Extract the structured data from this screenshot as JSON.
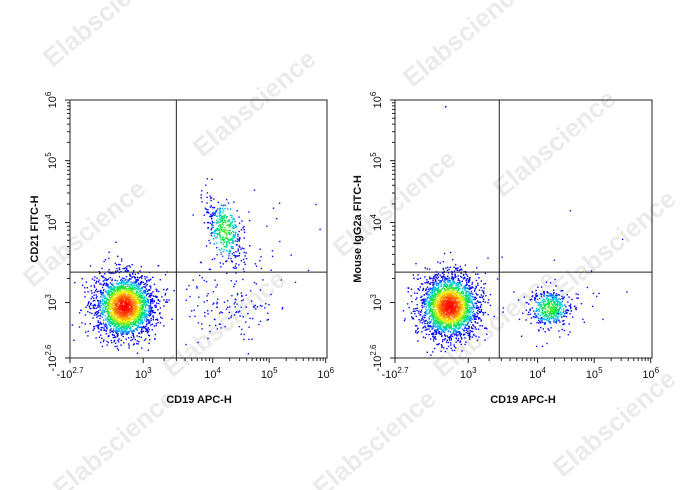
{
  "watermark": "Elabscience",
  "chart_data": [
    {
      "type": "scatter",
      "subtype": "flow-cytometry-density",
      "xlabel": "CD19 APC-H",
      "ylabel": "CD21 FITC-H",
      "x_ticks": [
        {
          "base": "-10",
          "exp": "2.7",
          "value": -500
        },
        {
          "base": "10",
          "exp": "3",
          "value": 1000
        },
        {
          "base": "10",
          "exp": "4",
          "value": 10000
        },
        {
          "base": "10",
          "exp": "5",
          "value": 100000
        },
        {
          "base": "10",
          "exp": "6",
          "value": 1000000
        }
      ],
      "y_ticks": [
        {
          "base": "-10",
          "exp": "2.6",
          "value": -400
        },
        {
          "base": "10",
          "exp": "3",
          "value": 1000
        },
        {
          "base": "10",
          "exp": "4",
          "value": 10000
        },
        {
          "base": "10",
          "exp": "5",
          "value": 100000
        },
        {
          "base": "10",
          "exp": "6",
          "value": 1000000
        }
      ],
      "quadrant_gate": {
        "x": 3000,
        "y": 2400
      },
      "populations": [
        {
          "x": 350,
          "y": 800,
          "density": "high",
          "n": 2300
        },
        {
          "x": 16000,
          "y": 8000,
          "density": "medium",
          "n": 380
        },
        {
          "x": 20000,
          "y": 900,
          "density": "low",
          "n": 130
        },
        {
          "x": 80000,
          "y": 5000,
          "density": "sparse",
          "n": 40
        }
      ],
      "colors": [
        "#0000ff",
        "#00c8ff",
        "#00ff00",
        "#ffff00",
        "#ff0000"
      ]
    },
    {
      "type": "scatter",
      "subtype": "flow-cytometry-density",
      "xlabel": "CD19 APC-H",
      "ylabel": "Mouse IgG2a FITC-H",
      "x_ticks": [
        {
          "base": "-10",
          "exp": "2.7",
          "value": -500
        },
        {
          "base": "10",
          "exp": "3",
          "value": 1000
        },
        {
          "base": "10",
          "exp": "4",
          "value": 10000
        },
        {
          "base": "10",
          "exp": "5",
          "value": 100000
        },
        {
          "base": "10",
          "exp": "6",
          "value": 1000000
        }
      ],
      "y_ticks": [
        {
          "base": "-10",
          "exp": "2.6",
          "value": -400
        },
        {
          "base": "10",
          "exp": "3",
          "value": 1000
        },
        {
          "base": "10",
          "exp": "4",
          "value": 10000
        },
        {
          "base": "10",
          "exp": "5",
          "value": 100000
        },
        {
          "base": "10",
          "exp": "6",
          "value": 1000000
        }
      ],
      "quadrant_gate": {
        "x": 2800,
        "y": 2400
      },
      "populations": [
        {
          "x": 350,
          "y": 800,
          "density": "high",
          "n": 2300
        },
        {
          "x": 16000,
          "y": 700,
          "density": "medium",
          "n": 450
        },
        {
          "x": 60000,
          "y": 800,
          "density": "sparse",
          "n": 40
        }
      ],
      "colors": [
        "#0000ff",
        "#00c8ff",
        "#00ff00",
        "#ffff00",
        "#ff0000"
      ]
    }
  ]
}
